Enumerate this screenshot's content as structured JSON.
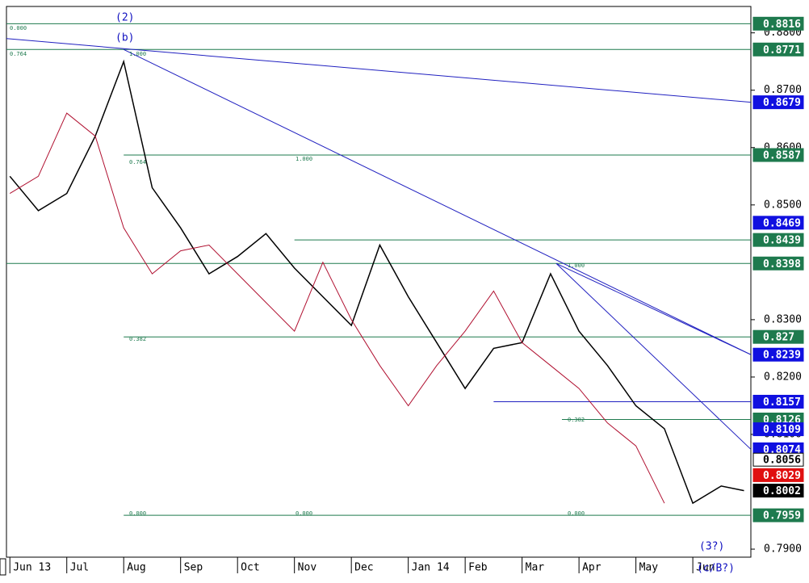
{
  "chart_data": {
    "type": "line",
    "categories": [
      "Jun 13",
      "Jul",
      "Aug",
      "Sep",
      "Oct",
      "Nov",
      "Dec",
      "Jan 14",
      "Feb",
      "Mar",
      "Apr",
      "May",
      "Jun"
    ],
    "xticks": [
      0,
      1,
      2,
      3,
      4,
      5,
      6,
      7,
      8,
      9,
      10,
      11,
      12
    ],
    "xlim": [
      -0.06,
      13.02
    ],
    "ylim": [
      0.7886,
      0.8846
    ],
    "yticks": [
      {
        "value": 0.88,
        "label": "0.8800"
      },
      {
        "value": 0.87,
        "label": "0.8700"
      },
      {
        "value": 0.86,
        "label": "0.8600"
      },
      {
        "value": 0.85,
        "label": "0.8500"
      },
      {
        "value": 0.83,
        "label": "0.8300"
      },
      {
        "value": 0.82,
        "label": "0.8200"
      },
      {
        "value": 0.81,
        "label": "0.8100"
      },
      {
        "value": 0.79,
        "label": "0.7900"
      }
    ],
    "x": [
      0,
      0.5,
      1,
      1.5,
      2,
      2.5,
      3,
      3.5,
      4,
      4.5,
      5,
      5.5,
      6,
      6.5,
      7,
      7.5,
      8,
      8.5,
      9,
      9.5,
      10,
      10.5,
      11,
      11.5,
      12,
      12.5,
      12.9
    ],
    "series": [
      {
        "color": "#000000",
        "values": [
          0.855,
          0.849,
          0.852,
          0.862,
          0.875,
          0.853,
          0.846,
          0.838,
          0.841,
          0.845,
          0.839,
          0.834,
          0.829,
          0.843,
          0.834,
          0.826,
          0.818,
          0.825,
          0.826,
          0.838,
          0.828,
          0.822,
          0.815,
          0.811,
          0.798,
          0.801,
          0.8002
        ]
      },
      {
        "color": "#b01030",
        "values": [
          0.852,
          0.855,
          0.866,
          0.862,
          0.846,
          0.838,
          0.842,
          0.843,
          0.838,
          0.833,
          0.828,
          0.84,
          0.83,
          0.822,
          0.815,
          0.822,
          0.828,
          0.835,
          0.826,
          0.822,
          0.818,
          0.812,
          0.808,
          0.798,
          null,
          null,
          null
        ]
      }
    ],
    "trend_lines": [
      {
        "color": "#2020c0",
        "points": [
          [
            -0.06,
            0.879
          ],
          [
            13.02,
            0.8679
          ]
        ]
      },
      {
        "color": "#2020c0",
        "points": [
          [
            2,
            0.8771
          ],
          [
            13.02,
            0.8239
          ]
        ]
      },
      {
        "color": "#2020c0",
        "points": [
          [
            9.6,
            0.8398
          ],
          [
            13.02,
            0.8074
          ]
        ]
      },
      {
        "color": "#2020c0",
        "points": [
          [
            9.6,
            0.8398
          ],
          [
            13.02,
            0.8239
          ]
        ]
      },
      {
        "color": "#2020c0",
        "points": [
          [
            8.5,
            0.8157
          ],
          [
            13.02,
            0.8157
          ]
        ]
      }
    ],
    "levels": [
      {
        "value": 0.8816,
        "color": "#1e7a4e",
        "from": -0.06
      },
      {
        "value": 0.8771,
        "color": "#1e7a4e",
        "from": -0.06
      },
      {
        "value": 0.8587,
        "color": "#1e7a4e",
        "from": 2
      },
      {
        "value": 0.8439,
        "color": "#1e7a4e",
        "from": 5
      },
      {
        "value": 0.8398,
        "color": "#1e7a4e",
        "from": -0.06
      },
      {
        "value": 0.827,
        "color": "#1e7a4e",
        "from": 2
      },
      {
        "value": 0.8126,
        "color": "#1e7a4e",
        "from": 9.7
      },
      {
        "value": 0.7959,
        "color": "#1e7a4e",
        "from": 2
      }
    ],
    "price_labels": [
      {
        "value": 0.8816,
        "color": "#1e7a4e"
      },
      {
        "value": 0.8771,
        "color": "#1e7a4e"
      },
      {
        "value": 0.8679,
        "color": "#1010e0"
      },
      {
        "value": 0.8587,
        "color": "#1e7a4e"
      },
      {
        "value": 0.8469,
        "color": "#1010e0"
      },
      {
        "value": 0.8439,
        "color": "#1e7a4e"
      },
      {
        "value": 0.8398,
        "color": "#1e7a4e"
      },
      {
        "value": 0.827,
        "color": "#1e7a4e"
      },
      {
        "value": 0.8239,
        "color": "#1010e0"
      },
      {
        "value": 0.8157,
        "color": "#1010e0"
      },
      {
        "value": 0.8126,
        "color": "#1e7a4e"
      },
      {
        "value": 0.8109,
        "color": "#1010e0"
      },
      {
        "value": 0.8074,
        "color": "#1010e0"
      },
      {
        "value": 0.8056,
        "color": "#ffffff"
      },
      {
        "value": 0.8029,
        "color": "#e01010"
      },
      {
        "value": 0.8002,
        "color": "#000000"
      },
      {
        "value": 0.7959,
        "color": "#1e7a4e"
      }
    ],
    "annotations": [
      "(2)",
      "(b)",
      "(3?)",
      "(c/B?)",
      "0.000",
      "0.764",
      "1.000",
      "0.764",
      "1.000",
      "0.382",
      "0.000",
      "0.000",
      "0.000",
      "1.000",
      "0.382"
    ]
  }
}
